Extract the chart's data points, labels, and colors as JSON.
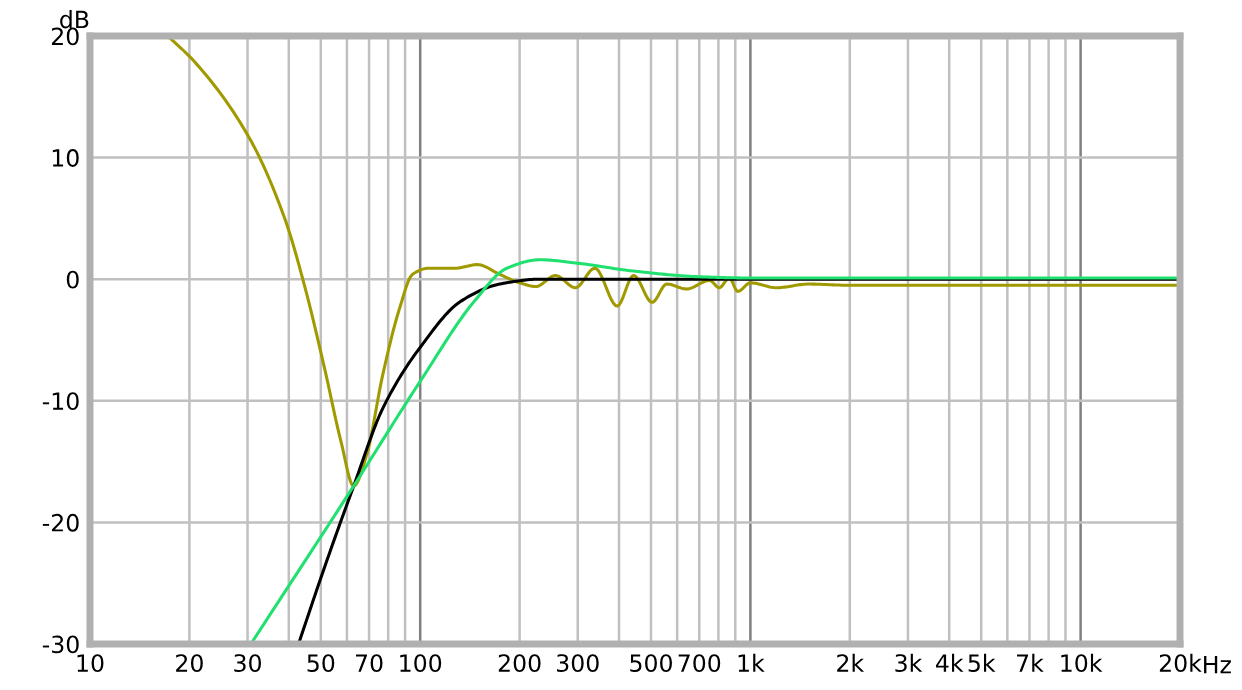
{
  "chart_data": {
    "type": "line",
    "ylabel": "dB",
    "log": "x",
    "grid": true,
    "legend": false,
    "marker": "none",
    "line_style": "solid",
    "xlim": [
      10,
      20000
    ],
    "ylim": [
      -30,
      20
    ],
    "xticks": [
      10,
      20,
      30,
      {
        "value": 40,
        "label": null
      },
      50,
      {
        "value": 60,
        "label": null
      },
      70,
      {
        "value": 80,
        "label": null
      },
      {
        "value": 90,
        "label": null
      },
      100,
      200,
      300,
      {
        "value": 400,
        "label": null
      },
      500,
      {
        "value": 600,
        "label": null
      },
      700,
      {
        "value": 800,
        "label": null
      },
      {
        "value": 900,
        "label": null
      },
      {
        "value": 1000,
        "label": "1k"
      },
      {
        "value": 2000,
        "label": "2k"
      },
      {
        "value": 3000,
        "label": "3k"
      },
      {
        "value": 4000,
        "label": "4k"
      },
      {
        "value": 5000,
        "label": "5k"
      },
      {
        "value": 6000,
        "label": null
      },
      {
        "value": 7000,
        "label": "7k"
      },
      {
        "value": 8000,
        "label": null
      },
      {
        "value": 9000,
        "label": null
      },
      {
        "value": 10000,
        "label": "10k"
      },
      {
        "value": 20000,
        "label": "20k"
      }
    ],
    "xlabel": "Hz",
    "yticks": [
      -30,
      -20,
      -10,
      0,
      10,
      20
    ],
    "series": [
      {
        "color": "#a09a00",
        "x": [
          17.2,
          20.7,
          30.4,
          39.1,
          44.8,
          51.3,
          57.5,
          62.9,
          68.9,
          77.1,
          86.6,
          94.8,
          106,
          127,
          149,
          174,
          200,
          224,
          257,
          295,
          338,
          395,
          443,
          504,
          558,
          641,
          752,
          805,
          863,
          916,
          1000,
          1200,
          1500,
          2000,
          5000,
          10000,
          20000
        ],
        "values": [
          20,
          17.9,
          11.6,
          4.8,
          -0.7,
          -7.3,
          -13.3,
          -17,
          -14.4,
          -7.8,
          -2.4,
          0.4,
          0.9,
          0.9,
          1.2,
          0.4,
          -0.3,
          -0.6,
          0.3,
          -0.7,
          0.9,
          -2.2,
          0.3,
          -1.9,
          -0.4,
          -0.8,
          -0.1,
          -0.7,
          0.1,
          -1,
          -0.3,
          -0.7,
          -0.4,
          -0.5,
          -0.5,
          -0.5,
          -0.5
        ]
      },
      {
        "color": "#000000",
        "x": [
          42.8,
          51.3,
          62.9,
          77.1,
          100,
          133,
          174,
          230,
          400,
          1000,
          20000
        ],
        "values": [
          -30,
          -23.7,
          -17,
          -10.6,
          -5.6,
          -1.8,
          -0.4,
          0,
          0,
          0,
          0
        ]
      },
      {
        "color": "#20e070",
        "x": [
          30.7,
          62.9,
          100,
          146,
          183,
          230,
          303,
          433,
          700,
          1000,
          20000
        ],
        "values": [
          -30,
          -17,
          -8.4,
          -1.8,
          0.9,
          1.6,
          1.3,
          0.7,
          0.2,
          0.1,
          0.1
        ]
      }
    ]
  }
}
